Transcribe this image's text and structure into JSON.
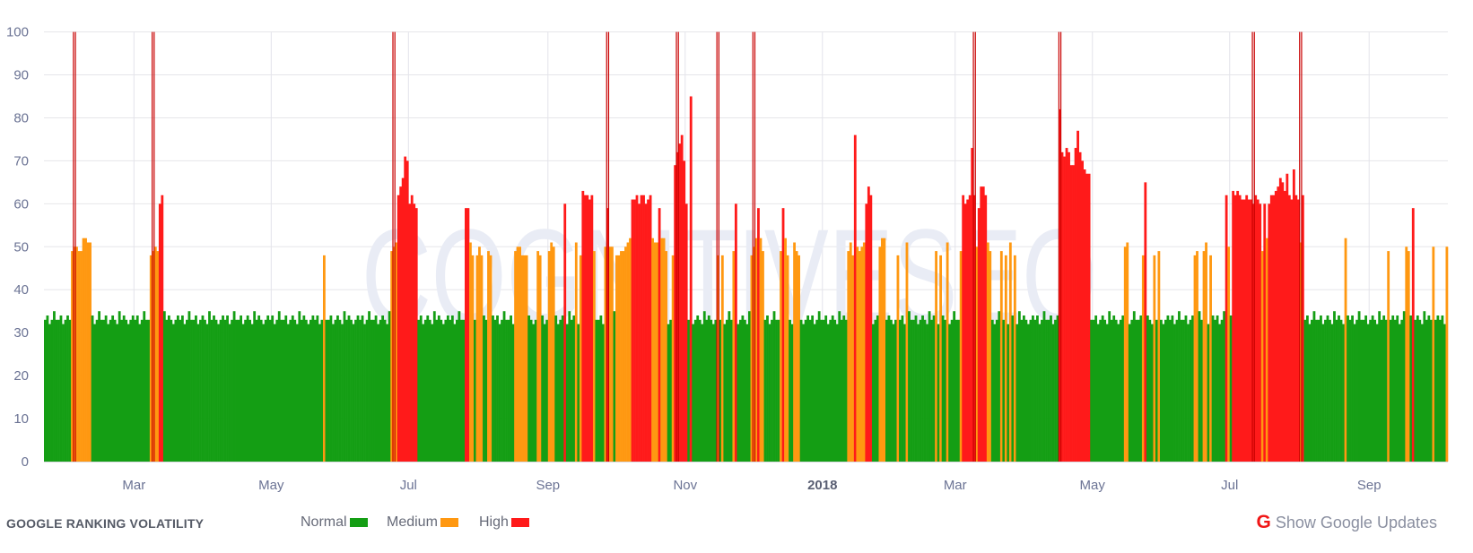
{
  "chart_data": {
    "type": "bar",
    "title": "GOOGLE RANKING VOLATILITY",
    "x_range": [
      "2017-01-20",
      "2018-10-05"
    ],
    "x_tick_labels": [
      {
        "label": "Mar",
        "date": "2017-03-01"
      },
      {
        "label": "May",
        "date": "2017-05-01"
      },
      {
        "label": "Jul",
        "date": "2017-07-01"
      },
      {
        "label": "Sep",
        "date": "2017-09-01"
      },
      {
        "label": "Nov",
        "date": "2017-11-01"
      },
      {
        "label": "2018",
        "date": "2018-01-01",
        "bold": true
      },
      {
        "label": "Mar",
        "date": "2018-03-01"
      },
      {
        "label": "May",
        "date": "2018-05-01"
      },
      {
        "label": "Jul",
        "date": "2018-07-01"
      },
      {
        "label": "Sep",
        "date": "2018-09-01"
      }
    ],
    "ylim": [
      0,
      100
    ],
    "y_ticks": [
      "0",
      "10",
      "20",
      "30",
      "40",
      "50",
      "60",
      "70",
      "80",
      "90",
      "100"
    ],
    "grid": true,
    "legend": {
      "placement": "bottom-left",
      "items": [
        {
          "label": "Normal",
          "color": "#149e14"
        },
        {
          "label": "Medium",
          "color": "#ff9811"
        },
        {
          "label": "High",
          "color": "#ff1a1a"
        }
      ]
    },
    "values": [
      33,
      34,
      32,
      33,
      35,
      33,
      33,
      34,
      32,
      33,
      34,
      33,
      49,
      50,
      50,
      49,
      49,
      52,
      52,
      51,
      51,
      34,
      32,
      33,
      35,
      33,
      33,
      34,
      32,
      33,
      34,
      33,
      32,
      35,
      33,
      34,
      33,
      32,
      33,
      34,
      33,
      34,
      32,
      33,
      35,
      33,
      33,
      48,
      49,
      50,
      49,
      60,
      62,
      35,
      33,
      34,
      33,
      32,
      33,
      34,
      33,
      34,
      32,
      33,
      35,
      33,
      33,
      34,
      32,
      33,
      34,
      33,
      32,
      35,
      33,
      34,
      33,
      32,
      33,
      34,
      33,
      34,
      32,
      33,
      35,
      33,
      33,
      34,
      32,
      33,
      34,
      33,
      32,
      35,
      33,
      34,
      33,
      32,
      33,
      34,
      33,
      34,
      32,
      33,
      35,
      33,
      33,
      34,
      32,
      33,
      34,
      33,
      32,
      35,
      33,
      34,
      33,
      32,
      33,
      34,
      33,
      34,
      32,
      33,
      48,
      33,
      33,
      34,
      32,
      33,
      34,
      33,
      32,
      35,
      33,
      34,
      33,
      32,
      33,
      34,
      33,
      34,
      32,
      33,
      35,
      33,
      33,
      34,
      32,
      33,
      34,
      33,
      32,
      35,
      49,
      50,
      51,
      62,
      64,
      66,
      71,
      70,
      60,
      62,
      60,
      59,
      33,
      34,
      32,
      33,
      34,
      33,
      32,
      35,
      33,
      34,
      33,
      32,
      33,
      34,
      33,
      34,
      32,
      33,
      35,
      33,
      33,
      59,
      59,
      51,
      48,
      33,
      48,
      50,
      48,
      34,
      33,
      49,
      48,
      34,
      33,
      34,
      32,
      33,
      35,
      33,
      33,
      34,
      32,
      49,
      50,
      50,
      48,
      48,
      48,
      34,
      33,
      32,
      33,
      49,
      48,
      34,
      32,
      33,
      49,
      51,
      50,
      34,
      32,
      33,
      34,
      60,
      32,
      35,
      33,
      34,
      51,
      32,
      48,
      63,
      62,
      62,
      61,
      62,
      49,
      33,
      33,
      34,
      32,
      50,
      59,
      50,
      50,
      35,
      48,
      48,
      49,
      49,
      50,
      51,
      52,
      61,
      61,
      62,
      60,
      62,
      62,
      60,
      61,
      62,
      52,
      51,
      51,
      59,
      52,
      52,
      49,
      32,
      33,
      48,
      69,
      72,
      74,
      76,
      70,
      60,
      33,
      85,
      32,
      33,
      34,
      33,
      32,
      35,
      33,
      34,
      33,
      32,
      33,
      48,
      33,
      48,
      32,
      33,
      35,
      33,
      49,
      60,
      32,
      33,
      34,
      33,
      32,
      35,
      48,
      50,
      52,
      59,
      52,
      49,
      33,
      34,
      32,
      33,
      35,
      33,
      33,
      49,
      59,
      52,
      48,
      33,
      32,
      51,
      49,
      48,
      33,
      32,
      33,
      34,
      33,
      34,
      32,
      33,
      35,
      33,
      33,
      34,
      32,
      33,
      34,
      33,
      32,
      35,
      33,
      34,
      33,
      49,
      51,
      48,
      76,
      50,
      49,
      50,
      51,
      60,
      64,
      62,
      32,
      33,
      34,
      50,
      52,
      52,
      33,
      34,
      33,
      32,
      33,
      48,
      33,
      34,
      32,
      51,
      35,
      33,
      33,
      34,
      32,
      33,
      34,
      33,
      32,
      35,
      33,
      34,
      49,
      32,
      48,
      34,
      33,
      51,
      32,
      33,
      35,
      33,
      33,
      49,
      62,
      60,
      61,
      62,
      73,
      62,
      50,
      59,
      64,
      64,
      62,
      51,
      49,
      33,
      32,
      33,
      35,
      49,
      33,
      48,
      32,
      51,
      34,
      48,
      32,
      35,
      33,
      34,
      33,
      32,
      33,
      34,
      33,
      34,
      32,
      33,
      35,
      33,
      33,
      34,
      32,
      33,
      34,
      82,
      72,
      71,
      73,
      72,
      69,
      69,
      73,
      77,
      72,
      70,
      68,
      67,
      67,
      33,
      33,
      34,
      32,
      33,
      34,
      33,
      32,
      35,
      33,
      34,
      33,
      32,
      33,
      34,
      50,
      51,
      32,
      33,
      35,
      33,
      33,
      34,
      48,
      65,
      34,
      33,
      32,
      48,
      33,
      49,
      33,
      32,
      33,
      34,
      33,
      34,
      32,
      33,
      35,
      33,
      33,
      34,
      32,
      33,
      34,
      48,
      49,
      35,
      33,
      49,
      51,
      32,
      48,
      34,
      33,
      34,
      32,
      33,
      35,
      62,
      50,
      34,
      63,
      62,
      63,
      62,
      61,
      61,
      62,
      61,
      61,
      60,
      62,
      61,
      60,
      49,
      60,
      52,
      60,
      62,
      62,
      63,
      64,
      66,
      65,
      63,
      67,
      62,
      61,
      68,
      62,
      61,
      51,
      62,
      33,
      34,
      32,
      33,
      35,
      33,
      33,
      34,
      32,
      33,
      34,
      33,
      32,
      35,
      33,
      34,
      33,
      32,
      52,
      34,
      33,
      34,
      32,
      33,
      35,
      33,
      33,
      34,
      32,
      33,
      34,
      33,
      32,
      35,
      33,
      34,
      33,
      49,
      33,
      34,
      33,
      34,
      32,
      33,
      35,
      50,
      49,
      34,
      59,
      33,
      34,
      33,
      32,
      35,
      33,
      34,
      33,
      50,
      33,
      34,
      33,
      34,
      32,
      50
    ],
    "google_updates": [
      "2017-02-02",
      "2017-03-09",
      "2017-06-24",
      "2017-09-27",
      "2017-10-28",
      "2017-11-15",
      "2017-12-01",
      "2018-03-09",
      "2018-04-16",
      "2018-07-11",
      "2018-08-01"
    ],
    "update_marker_color": "#c80000"
  },
  "watermark": "COGNITIVESEO",
  "footer": {
    "title": "GOOGLE RANKING VOLATILITY",
    "legend": [
      "Normal",
      "Medium",
      "High"
    ],
    "show_updates_label": "Show Google Updates",
    "updates_icon": "G"
  }
}
